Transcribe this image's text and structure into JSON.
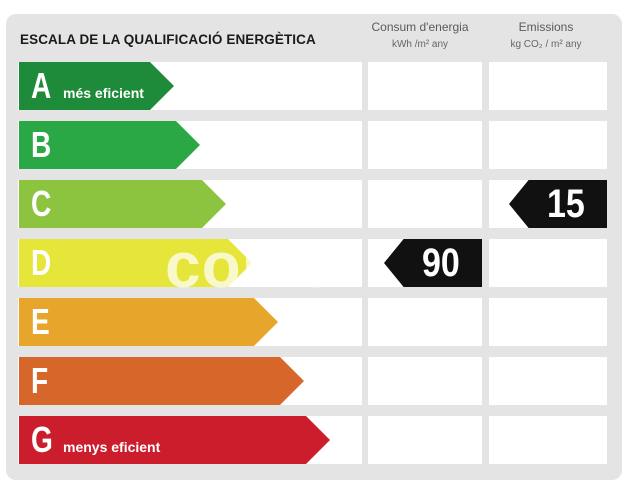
{
  "title": "ESCALA DE LA QUALIFICACIÓ ENERGÈTICA",
  "columns": {
    "consumption": {
      "label": "Consum d'energia",
      "units": "kWh /m² any"
    },
    "emissions": {
      "label": "Emissions",
      "units": "kg CO₂ / m² any"
    }
  },
  "ratings": [
    {
      "letter": "A",
      "sublabel": "més eficient",
      "color": "#1e8b3a"
    },
    {
      "letter": "B",
      "sublabel": "",
      "color": "#2aa845"
    },
    {
      "letter": "C",
      "sublabel": "",
      "color": "#8cc43f"
    },
    {
      "letter": "D",
      "sublabel": "",
      "color": "#e6e53a"
    },
    {
      "letter": "E",
      "sublabel": "",
      "color": "#e7a52c"
    },
    {
      "letter": "F",
      "sublabel": "",
      "color": "#d7662a"
    },
    {
      "letter": "G",
      "sublabel": "menys eficient",
      "color": "#cc1d2c"
    }
  ],
  "consumption_value": {
    "rating": "D",
    "value": "90"
  },
  "emissions_value": {
    "rating": "C",
    "value": "15"
  },
  "watermark": "collie"
}
